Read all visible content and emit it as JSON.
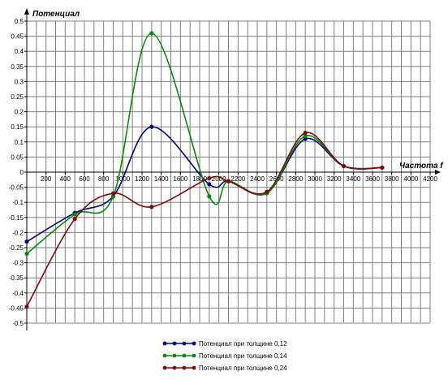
{
  "chart_data": {
    "type": "line",
    "ylabel": "Потенциал",
    "xlabel": "Частота f",
    "xlim": [
      0,
      4200
    ],
    "ylim": [
      -0.5,
      0.5
    ],
    "x_ticks": [
      200,
      400,
      600,
      800,
      1000,
      1200,
      1400,
      1600,
      1800,
      2000,
      2200,
      2400,
      2600,
      2800,
      3000,
      3200,
      3400,
      3600,
      3800,
      4000,
      4200
    ],
    "y_ticks": [
      0.5,
      0.45,
      0.4,
      0.35,
      0.3,
      0.25,
      0.2,
      0.15,
      0.1,
      0.05,
      0,
      -0.05,
      -0.1,
      -0.15,
      -0.2,
      -0.25,
      -0.3,
      -0.35,
      -0.4,
      -0.45,
      -0.5
    ],
    "y_tick_labels": [
      "0.5",
      "0.45",
      "0.4",
      "0.35",
      "0.3",
      "0.25",
      "0.2",
      "0.15",
      "0.1",
      "0.05",
      "0",
      "-0.05",
      "-0.1",
      "-0.15",
      "-0.2",
      "-0.25",
      "-0.3",
      "-0.35",
      "-0.4",
      "-0.45",
      "-0.5"
    ],
    "grid": true,
    "legend_position": "bottom-center",
    "series": [
      {
        "name": "Потенциал при толщине 0,12",
        "color": "#00007f",
        "x": [
          0,
          500,
          900,
          1300,
          1900,
          2100,
          2500,
          2900,
          3300,
          3700
        ],
        "y": [
          -0.23,
          -0.135,
          -0.08,
          0.15,
          -0.04,
          -0.03,
          -0.07,
          0.11,
          0.02,
          0.015
        ]
      },
      {
        "name": "Потенциал при толщине 0,14",
        "color": "#0a8a0a",
        "x": [
          0,
          500,
          900,
          1300,
          1900,
          2100,
          2500,
          2900,
          3300,
          3700
        ],
        "y": [
          -0.27,
          -0.14,
          -0.08,
          0.46,
          -0.08,
          -0.03,
          -0.07,
          0.12,
          0.02,
          0.015
        ]
      },
      {
        "name": "Потенциал при толщине 0,24",
        "color": "#7f0a0a",
        "x": [
          0,
          500,
          900,
          1300,
          1900,
          2100,
          2500,
          2900,
          3300,
          3700
        ],
        "y": [
          -0.445,
          -0.155,
          -0.07,
          -0.115,
          -0.02,
          -0.03,
          -0.065,
          0.13,
          0.02,
          0.015
        ]
      }
    ]
  }
}
